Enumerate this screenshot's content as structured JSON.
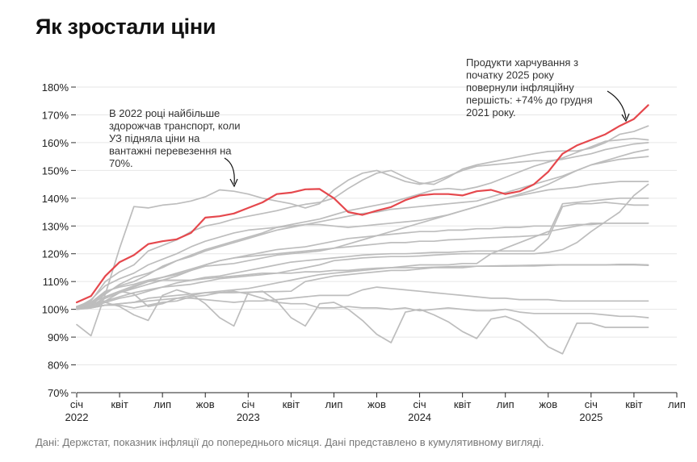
{
  "title": "Як зростали ціни",
  "source": "Дані: Держстат, показник інфляції до попереднього місяця. Дані представлено в кумулятивному вигляді.",
  "annotations": {
    "transport": [
      "В 2022 році найбільше",
      "здорожчав транспорт, коли",
      "УЗ підняла ціни на",
      "вантажні перевезення на",
      "70%."
    ],
    "food": [
      "Продукти харчування з",
      "початку 2025 року",
      "повернули інфляційну",
      "першість: +74% до грудня",
      "2021 року."
    ]
  },
  "colors": {
    "highlight": "#e5484d",
    "other": "#bdbdbd",
    "grid": "#e6e6e6"
  },
  "chart_data": {
    "type": "line",
    "title": "Як зростали ціни",
    "xlabel": "",
    "ylabel": "",
    "x_ticks": [
      {
        "label": "січ",
        "sub": "2022",
        "t": 0
      },
      {
        "label": "квіт",
        "sub": "",
        "t": 3
      },
      {
        "label": "лип",
        "sub": "",
        "t": 6
      },
      {
        "label": "жов",
        "sub": "",
        "t": 9
      },
      {
        "label": "січ",
        "sub": "2023",
        "t": 12
      },
      {
        "label": "квіт",
        "sub": "",
        "t": 15
      },
      {
        "label": "лип",
        "sub": "",
        "t": 18
      },
      {
        "label": "жов",
        "sub": "",
        "t": 21
      },
      {
        "label": "січ",
        "sub": "2024",
        "t": 24
      },
      {
        "label": "квіт",
        "sub": "",
        "t": 27
      },
      {
        "label": "лип",
        "sub": "",
        "t": 30
      },
      {
        "label": "жов",
        "sub": "",
        "t": 33
      },
      {
        "label": "січ",
        "sub": "2025",
        "t": 36
      },
      {
        "label": "квіт",
        "sub": "",
        "t": 39
      },
      {
        "label": "лип",
        "sub": "",
        "t": 42
      }
    ],
    "x_range": [
      0,
      42
    ],
    "y_ticks": [
      70,
      80,
      90,
      100,
      110,
      120,
      130,
      140,
      150,
      160,
      170,
      180
    ],
    "y_tick_labels": [
      "70%",
      "80%",
      "90%",
      "100%",
      "110%",
      "120%",
      "130%",
      "140%",
      "150%",
      "160%",
      "170%",
      "180%"
    ],
    "ylim": [
      70,
      180
    ],
    "grid": true,
    "highlight_index": 0,
    "series": [
      {
        "values": [
          102.5,
          104.8,
          112,
          117,
          119.5,
          123.5,
          124.5,
          125.2,
          127.5,
          133,
          133.5,
          134.5,
          136.5,
          138.5,
          141.5,
          142,
          143.2,
          143.3,
          140,
          135,
          134,
          135.5,
          136.8,
          139.3,
          141,
          141.5,
          141.5,
          141,
          142.5,
          143,
          141.5,
          142.5,
          145,
          149.5,
          156,
          159,
          161,
          163,
          166,
          168.5,
          173.5
        ]
      },
      {
        "values": [
          101,
          103,
          110,
          113.5,
          116,
          121,
          123,
          125,
          128,
          130,
          131,
          132.5,
          133.5,
          134.5,
          135.5,
          136.8,
          137.8,
          138.5,
          140,
          143.5,
          146.5,
          149,
          150,
          147.5,
          145.5,
          145,
          147.5,
          150.5,
          152,
          153,
          154,
          155,
          156,
          156.8,
          157,
          157,
          158,
          160,
          163,
          164,
          166
        ]
      },
      {
        "values": [
          100.5,
          102,
          106,
          108.5,
          110,
          112.5,
          115.5,
          117.5,
          119.5,
          121.5,
          123,
          124.5,
          126,
          127.5,
          129.5,
          130.5,
          131.5,
          132.5,
          134,
          135.5,
          136.5,
          137.5,
          138.5,
          140,
          141.5,
          143,
          143.5,
          143,
          144,
          145.5,
          147.5,
          149.5,
          151.5,
          153,
          154.5,
          156.5,
          158.5,
          160.5,
          161,
          161.5,
          161
        ]
      },
      {
        "values": [
          100,
          101.5,
          105.5,
          109,
          111.5,
          113,
          115,
          117.5,
          119,
          121,
          122.5,
          124,
          125.5,
          127,
          128.5,
          129.5,
          130.5,
          131.5,
          132.5,
          133.5,
          134.5,
          135,
          136,
          136.5,
          137,
          137.5,
          138,
          138.5,
          139,
          140.5,
          142,
          143.5,
          145,
          146.5,
          148,
          150,
          152,
          153.5,
          155,
          156.5,
          157.5
        ]
      },
      {
        "values": [
          101,
          102.5,
          106.5,
          108,
          109,
          110.5,
          111.5,
          112.5,
          114,
          115.5,
          116,
          116.5,
          117.5,
          118.5,
          119.5,
          120,
          120.5,
          121,
          122,
          123.5,
          125,
          126.5,
          128,
          129.5,
          131,
          132.5,
          134,
          135.5,
          137,
          138.5,
          140,
          141.5,
          143,
          145,
          147.5,
          150,
          152,
          153,
          154,
          154.5,
          155
        ]
      },
      {
        "values": [
          94.5,
          90.5,
          105.5,
          122,
          137,
          136.5,
          137.5,
          138,
          139,
          140.5,
          143,
          142.5,
          141.5,
          140,
          139,
          138,
          136.5,
          138,
          143,
          146.5,
          149,
          150,
          148,
          146,
          145,
          146,
          148,
          150,
          151.5,
          152,
          152.5,
          153,
          153.5,
          153.5,
          154,
          155,
          156,
          157.5,
          158.5,
          159.5,
          160
        ]
      },
      {
        "values": [
          100.5,
          103.5,
          108.5,
          111,
          113,
          116,
          118,
          120,
          122.5,
          124.5,
          126,
          127.5,
          128.5,
          129,
          129.5,
          130,
          130.5,
          130.5,
          130,
          129.5,
          130,
          130.5,
          131,
          131.5,
          132,
          133,
          134,
          135.5,
          137,
          138.5,
          140,
          141,
          142,
          143,
          143.5,
          144,
          145,
          145.5,
          146,
          146,
          146
        ]
      },
      {
        "values": [
          100,
          101,
          104,
          106,
          107.5,
          109,
          110.5,
          112,
          114,
          116,
          117.5,
          118.5,
          119,
          119.5,
          120,
          120.5,
          121,
          121.5,
          122,
          122.5,
          123,
          123.5,
          124,
          124,
          124.5,
          124.5,
          125,
          125.2,
          125.5,
          125.8,
          126,
          126.2,
          126.5,
          127,
          138,
          138.5,
          139,
          139.5,
          140,
          140,
          140
        ]
      },
      {
        "values": [
          100.5,
          101,
          104.5,
          106.5,
          108.5,
          110,
          111.5,
          113,
          114.5,
          116,
          117.5,
          118.5,
          119.5,
          120.5,
          121.5,
          122,
          122.5,
          123.5,
          124.5,
          125.5,
          126,
          126.5,
          127,
          127.5,
          128,
          128,
          128.5,
          128.5,
          129,
          129,
          129.5,
          129.5,
          130,
          130,
          130,
          130.5,
          130.5,
          131,
          131,
          131,
          131
        ]
      },
      {
        "values": [
          100,
          100.5,
          102.5,
          104,
          105,
          106.5,
          108,
          109.5,
          110.5,
          111.5,
          112,
          113,
          114,
          115,
          116,
          117,
          117.5,
          118,
          118.5,
          119,
          119.5,
          119.8,
          120,
          120,
          120.2,
          120.5,
          120.5,
          120.8,
          121,
          121,
          121,
          121,
          121,
          125.5,
          137,
          138,
          138,
          138.5,
          138,
          137.5,
          137.5
        ]
      },
      {
        "values": [
          101,
          102,
          103,
          104.5,
          106,
          107,
          108,
          108.5,
          109,
          110,
          111,
          111.5,
          112,
          112.5,
          113,
          114,
          115,
          116,
          117.5,
          118,
          118.5,
          118.8,
          119,
          119,
          119.2,
          119.5,
          119.8,
          120,
          120,
          120,
          120,
          120,
          120,
          120.5,
          121.5,
          124,
          128,
          131.5,
          135,
          141,
          145
        ]
      },
      {
        "values": [
          100,
          101,
          101.5,
          102,
          102.5,
          103,
          103.5,
          104,
          105,
          106,
          106.5,
          107,
          107.5,
          108.5,
          109.5,
          110.5,
          111.5,
          112.5,
          113,
          113.5,
          114,
          114.5,
          115,
          115.5,
          116,
          116,
          116,
          116.5,
          116.5,
          120,
          122,
          124,
          126,
          128,
          129,
          130,
          131,
          131,
          131,
          131,
          131
        ]
      },
      {
        "values": [
          100,
          101,
          103,
          106,
          108,
          110,
          110.5,
          110.5,
          110.5,
          111,
          111.5,
          112,
          112.5,
          113,
          113,
          113,
          113.5,
          113.5,
          114,
          114,
          114.5,
          114.8,
          115,
          115,
          115,
          115.2,
          115.3,
          115.5,
          115.5,
          115.6,
          115.7,
          115.8,
          115.9,
          116,
          116,
          116,
          116,
          116,
          116,
          116,
          115.8
        ]
      },
      {
        "values": [
          100,
          100.5,
          101.5,
          102,
          102.5,
          104,
          104.5,
          105,
          105.5,
          106,
          106,
          106,
          106.2,
          106.3,
          106.4,
          106.5,
          110,
          111,
          112,
          112.5,
          113,
          113.5,
          114,
          114,
          114.5,
          115,
          115,
          115,
          115.5,
          115.5,
          115.5,
          115.6,
          115.6,
          115.8,
          116,
          116,
          116,
          116,
          116.2,
          116.2,
          116
        ]
      },
      {
        "values": [
          101,
          102.5,
          104.5,
          106.5,
          105.5,
          101,
          102,
          104,
          104,
          103.5,
          103,
          102.5,
          103,
          103,
          103.5,
          104,
          104.5,
          105,
          105,
          105,
          107,
          108,
          107.5,
          107,
          106.5,
          106,
          105.5,
          105,
          104.5,
          104,
          104,
          103.5,
          103.5,
          103.5,
          103,
          103,
          103,
          103,
          103,
          103,
          103
        ]
      },
      {
        "values": [
          100.5,
          100.5,
          101.5,
          101.5,
          100.5,
          101.5,
          102.5,
          103,
          104.5,
          105,
          106,
          106.5,
          105.5,
          104,
          102.5,
          102,
          102,
          100.5,
          100.5,
          101,
          100.5,
          100.5,
          100,
          100.5,
          99.5,
          100,
          100.5,
          100,
          99.5,
          99.5,
          100,
          99,
          98.5,
          98.5,
          98.5,
          98.5,
          98.5,
          98,
          97.5,
          97.5,
          97
        ]
      },
      {
        "values": [
          101,
          101.5,
          102.5,
          101,
          98,
          96,
          105,
          107,
          105.5,
          102,
          97,
          94,
          106,
          106.5,
          103,
          97,
          94,
          102,
          102.5,
          100,
          96,
          91,
          88,
          99,
          100,
          98,
          95.5,
          92,
          89.5,
          96.5,
          97.5,
          95.5,
          91.5,
          86.5,
          84,
          95,
          95,
          93.5,
          93.5,
          93.5,
          93.5
        ]
      }
    ]
  }
}
